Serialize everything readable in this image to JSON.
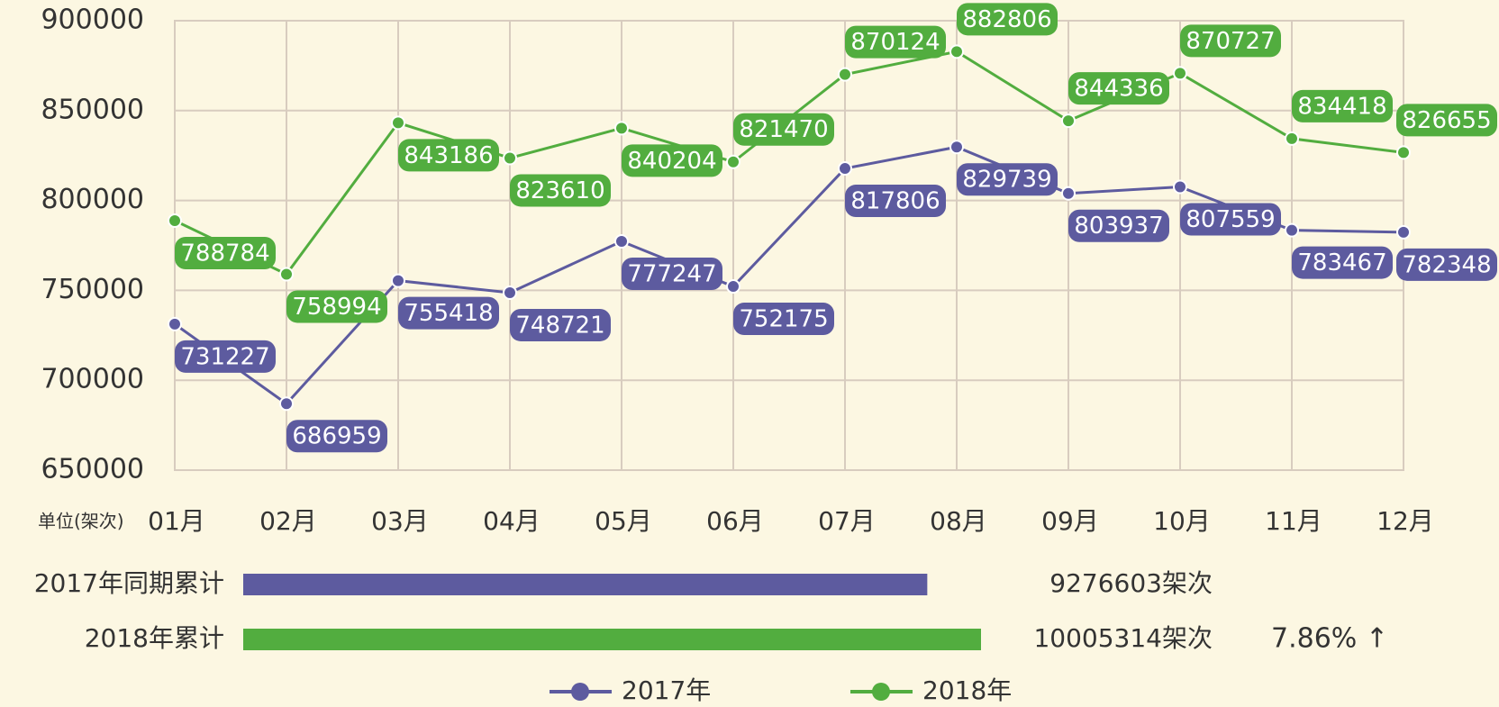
{
  "chart_data": {
    "type": "line",
    "unit_label": "单位(架次)",
    "categories": [
      "01月",
      "02月",
      "03月",
      "04月",
      "05月",
      "06月",
      "07月",
      "08月",
      "09月",
      "10月",
      "11月",
      "12月"
    ],
    "series": [
      {
        "name": "2017年",
        "color": "#5d5b9f",
        "values": [
          731227,
          686959,
          755418,
          748721,
          777247,
          752175,
          817806,
          829739,
          803937,
          807559,
          783467,
          782348
        ]
      },
      {
        "name": "2018年",
        "color": "#52ad3f",
        "values": [
          788784,
          758994,
          843186,
          823610,
          840204,
          821470,
          870124,
          882806,
          844336,
          870727,
          834418,
          826655
        ]
      }
    ],
    "ylim": [
      650000,
      900000
    ],
    "yticks": [
      650000,
      700000,
      750000,
      800000,
      850000,
      900000
    ],
    "grid": true,
    "summary": {
      "type": "bar",
      "bars": [
        {
          "label": "2017年同期累计",
          "value": 9276603,
          "value_label": "9276603架次",
          "color": "#5d5b9f"
        },
        {
          "label": "2018年累计",
          "value": 10005314,
          "value_label": "10005314架次",
          "color": "#52ad3f"
        }
      ],
      "growth": "7.86% ↑"
    }
  }
}
